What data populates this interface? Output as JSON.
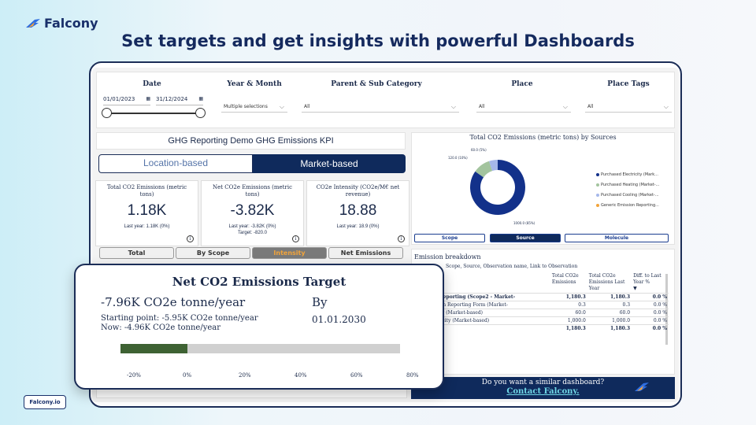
{
  "brand": {
    "name": "Falcony",
    "footer_badge": "Falcony.io"
  },
  "headline": "Set targets and get insights with powerful Dashboards",
  "filters": {
    "date": {
      "label": "Date",
      "from": "01/01/2023",
      "to": "31/12/2024"
    },
    "year_month": {
      "label": "Year & Month",
      "value": "Multiple selections"
    },
    "category": {
      "label": "Parent & Sub Category",
      "value": "All"
    },
    "place": {
      "label": "Place",
      "value": "All"
    },
    "place_tags": {
      "label": "Place Tags",
      "value": "All"
    }
  },
  "kpi_title": "GHG Reporting Demo GHG Emissions KPI",
  "basis_toggle": {
    "location": "Location-based",
    "market": "Market-based"
  },
  "kpis": [
    {
      "title": "Total CO2 Emissions (metric tons)",
      "value": "1.18K",
      "last_year": "Last year: 1.18K (0%)",
      "target": ""
    },
    {
      "title": "Net CO2e Emissions (metric tons)",
      "value": "-3.82K",
      "last_year": "Last year: -3.82K (0%)",
      "target": "Target: -820.0"
    },
    {
      "title": "CO2e Intensity (CO2e/M€ net revenue)",
      "value": "18.88",
      "last_year": "Last year: 18.9 (0%)",
      "target": ""
    }
  ],
  "info_glyph": "i",
  "view_tabs": [
    "Total",
    "By Scope",
    "Intensity",
    "Net Emissions"
  ],
  "donut": {
    "title": "Total CO2 Emissions (metric tons) by Sources",
    "labels": {
      "electricity": "1000.0 (85%)",
      "heating": "120.0 (10%)",
      "cooling": "60.0 (5%)"
    },
    "legend": [
      {
        "name": "Purchased Electricity (Mark...",
        "color": "#13318a"
      },
      {
        "name": "Purchased Heating (Market-...",
        "color": "#a3c49e"
      },
      {
        "name": "Purchased Cooling (Market-...",
        "color": "#a6b8ea"
      },
      {
        "name": "Generic Emission Reporting...",
        "color": "#f2a43a"
      }
    ],
    "values": [
      1000,
      120,
      60
    ],
    "colors": [
      "#13318a",
      "#a3c49e",
      "#a6b8ea"
    ],
    "segments": [
      "Scope",
      "Source",
      "Molecule"
    ]
  },
  "breakdown": {
    "title": "Emission breakdown",
    "subtitle": "Scope, Source, Observation name, Link to Observation",
    "headers": [
      "Total CO2e Emissions",
      "Total CO2e Emissions Last Year",
      "Diff. to Last Year %"
    ],
    "rows": [
      {
        "name": "Emission Reporting (Scope2 - Market-",
        "total": "1,180.3",
        "last": "1,180.3",
        "diff": "0.0 %",
        "bold": true
      },
      {
        "name": "eric Emission Reporting Form (Market-",
        "total": "0.3",
        "last": "0.3",
        "diff": "0.0 %",
        "bold": false
      },
      {
        "name": "ased Cooling (Market-based)",
        "total": "60.0",
        "last": "60.0",
        "diff": "0.0 %",
        "bold": false
      },
      {
        "name": "ased Electricity (Market-based)",
        "total": "1,000.0",
        "last": "1,000.0",
        "diff": "0.0 %",
        "bold": false
      },
      {
        "name": "",
        "total": "1,180.3",
        "last": "1,180.3",
        "diff": "0.0 %",
        "bold": true
      }
    ]
  },
  "cta": {
    "question": "Do you want a similar dashboard?",
    "link": "Contact Falcony."
  },
  "target_card": {
    "title": "Net CO2 Emissions Target",
    "value": "-7.96K CO2e tonne/year",
    "by_label": "By",
    "by_date": "01.01.2030",
    "starting_point": "Starting point: -5.95K CO2e tonne/year",
    "now": "Now: -4.96K CO2e tonne/year",
    "progress_pct": 0.0,
    "axis_ticks": [
      "-20%",
      "0%",
      "20%",
      "40%",
      "60%",
      "80%"
    ],
    "axis_min": -20,
    "axis_max": 80,
    "bar_colors": {
      "fill": "#3e6233",
      "track": "#d0d0d0"
    }
  }
}
